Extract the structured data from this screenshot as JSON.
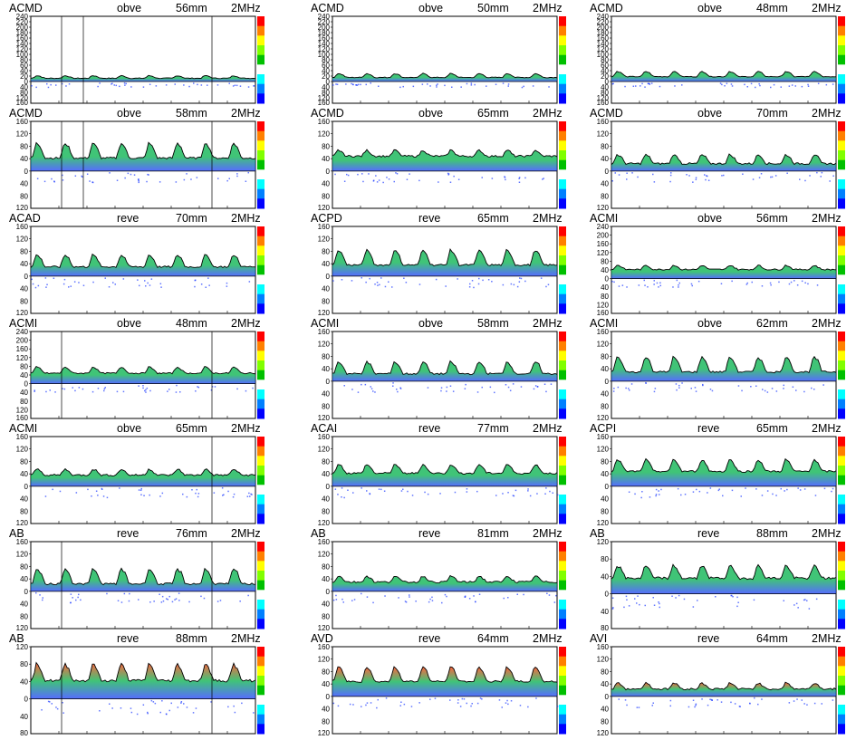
{
  "panels": [
    {
      "vessel": "ACMD",
      "direction": "obve",
      "depth": "56mm",
      "frequency": "2MHz",
      "pos_ticks": [
        "240",
        "220",
        "200",
        "180",
        "160",
        "140",
        "120",
        "100",
        "80",
        "60",
        "40",
        "20",
        "0"
      ],
      "neg_ticks": [
        "40",
        "80",
        "120",
        "160"
      ],
      "markers": [
        64,
        88,
        230
      ]
    },
    {
      "vessel": "ACMD",
      "direction": "obve",
      "depth": "50mm",
      "frequency": "2MHz",
      "pos_ticks": [
        "240",
        "220",
        "200",
        "180",
        "160",
        "140",
        "120",
        "100",
        "80",
        "60",
        "40",
        "20",
        "0"
      ],
      "neg_ticks": [
        "40",
        "80",
        "120",
        "160"
      ],
      "markers": []
    },
    {
      "vessel": "ACMD",
      "direction": "obve",
      "depth": "48mm",
      "frequency": "2MHz",
      "pos_ticks": [
        "240",
        "220",
        "200",
        "180",
        "160",
        "140",
        "120",
        "100",
        "80",
        "60",
        "40",
        "20",
        "0"
      ],
      "neg_ticks": [
        "40",
        "80",
        "120",
        "160"
      ],
      "markers": []
    },
    {
      "vessel": "ACMD",
      "direction": "obve",
      "depth": "58mm",
      "frequency": "2MHz",
      "pos_ticks": [
        "160",
        "120",
        "80",
        "40",
        "0"
      ],
      "neg_ticks": [
        "40",
        "80",
        "120"
      ],
      "markers": [
        64,
        88,
        230
      ]
    },
    {
      "vessel": "ACMD",
      "direction": "obve",
      "depth": "65mm",
      "frequency": "2MHz",
      "pos_ticks": [
        "160",
        "120",
        "80",
        "40",
        "0"
      ],
      "neg_ticks": [
        "40",
        "80",
        "120"
      ],
      "markers": []
    },
    {
      "vessel": "ACMD",
      "direction": "obve",
      "depth": "70mm",
      "frequency": "2MHz",
      "pos_ticks": [
        "160",
        "120",
        "80",
        "40",
        "0"
      ],
      "neg_ticks": [
        "40",
        "80",
        "120"
      ],
      "markers": []
    },
    {
      "vessel": "ACAD",
      "direction": "reve",
      "depth": "70mm",
      "frequency": "2MHz",
      "pos_ticks": [
        "160",
        "120",
        "80",
        "40",
        "0"
      ],
      "neg_ticks": [
        "40",
        "80",
        "120"
      ],
      "markers": []
    },
    {
      "vessel": "ACPD",
      "direction": "reve",
      "depth": "65mm",
      "frequency": "2MHz",
      "pos_ticks": [
        "160",
        "120",
        "80",
        "40",
        "0"
      ],
      "neg_ticks": [
        "40",
        "80",
        "120"
      ],
      "markers": []
    },
    {
      "vessel": "ACMI",
      "direction": "obve",
      "depth": "56mm",
      "frequency": "2MHz",
      "pos_ticks": [
        "240",
        "200",
        "160",
        "120",
        "80",
        "40",
        "0"
      ],
      "neg_ticks": [
        "40",
        "80",
        "120",
        "160"
      ],
      "markers": []
    },
    {
      "vessel": "ACMI",
      "direction": "obve",
      "depth": "48mm",
      "frequency": "2MHz",
      "pos_ticks": [
        "240",
        "200",
        "160",
        "120",
        "80",
        "40",
        "0"
      ],
      "neg_ticks": [
        "40",
        "80",
        "120",
        "160"
      ],
      "markers": [
        64,
        230
      ]
    },
    {
      "vessel": "ACMI",
      "direction": "obve",
      "depth": "58mm",
      "frequency": "2MHz",
      "pos_ticks": [
        "160",
        "120",
        "80",
        "40",
        "0"
      ],
      "neg_ticks": [
        "40",
        "80",
        "120"
      ],
      "markers": []
    },
    {
      "vessel": "ACMI",
      "direction": "obve",
      "depth": "62mm",
      "frequency": "2MHz",
      "pos_ticks": [
        "160",
        "120",
        "80",
        "40",
        "0"
      ],
      "neg_ticks": [
        "40",
        "80",
        "120"
      ],
      "markers": []
    },
    {
      "vessel": "ACMI",
      "direction": "obve",
      "depth": "65mm",
      "frequency": "2MHz",
      "pos_ticks": [
        "160",
        "120",
        "80",
        "40",
        "0"
      ],
      "neg_ticks": [
        "40",
        "80",
        "120"
      ],
      "markers": [
        230
      ]
    },
    {
      "vessel": "ACAI",
      "direction": "reve",
      "depth": "77mm",
      "frequency": "2MHz",
      "pos_ticks": [
        "160",
        "120",
        "80",
        "40",
        "0"
      ],
      "neg_ticks": [
        "40",
        "80",
        "120"
      ],
      "markers": []
    },
    {
      "vessel": "ACPI",
      "direction": "reve",
      "depth": "65mm",
      "frequency": "2MHz",
      "pos_ticks": [
        "160",
        "120",
        "80",
        "40",
        "0"
      ],
      "neg_ticks": [
        "40",
        "80",
        "120"
      ],
      "markers": []
    },
    {
      "vessel": "AB",
      "direction": "reve",
      "depth": "76mm",
      "frequency": "2MHz",
      "pos_ticks": [
        "160",
        "120",
        "80",
        "40",
        "0"
      ],
      "neg_ticks": [
        "40",
        "80",
        "120"
      ],
      "markers": [
        64,
        230
      ]
    },
    {
      "vessel": "AB",
      "direction": "reve",
      "depth": "81mm",
      "frequency": "2MHz",
      "pos_ticks": [
        "160",
        "120",
        "80",
        "40",
        "0"
      ],
      "neg_ticks": [
        "40",
        "80",
        "120"
      ],
      "markers": []
    },
    {
      "vessel": "AB",
      "direction": "reve",
      "depth": "88mm",
      "frequency": "2MHz",
      "pos_ticks": [
        "120",
        "80",
        "40",
        "0"
      ],
      "neg_ticks": [
        "40",
        "80"
      ],
      "markers": []
    },
    {
      "vessel": "AB",
      "direction": "reve",
      "depth": "88mm",
      "frequency": "2MHz",
      "pos_ticks": [
        "120",
        "80",
        "40",
        "0"
      ],
      "neg_ticks": [
        "40",
        "80"
      ],
      "markers": [
        64,
        230
      ]
    },
    {
      "vessel": "AVD",
      "direction": "reve",
      "depth": "64mm",
      "frequency": "2MHz",
      "pos_ticks": [
        "160",
        "120",
        "80",
        "40",
        "0"
      ],
      "neg_ticks": [
        "40",
        "80",
        "120"
      ],
      "markers": []
    },
    {
      "vessel": "AVI",
      "direction": "reve",
      "depth": "64mm",
      "frequency": "2MHz",
      "pos_ticks": [
        "160",
        "120",
        "80",
        "40",
        "0"
      ],
      "neg_ticks": [
        "40",
        "80",
        "120"
      ],
      "markers": []
    }
  ],
  "colors": {
    "envelope": "#000000",
    "spectrum_low": "#1e3cff",
    "spectrum_mid": "#00b04a",
    "spectrum_high": "#ff3000",
    "colorbar": [
      "#ff0000",
      "#ff8000",
      "#ffff00",
      "#80ff00",
      "#00c000",
      "#ffffff",
      "#00ffff",
      "#0080ff",
      "#0000ff"
    ]
  }
}
